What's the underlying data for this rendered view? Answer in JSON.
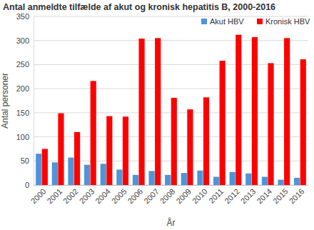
{
  "chart_data": {
    "type": "bar",
    "title": "Antal anmeldte tilfælde af akut og kronisk hepatitis B, 2000-2016",
    "x_label": "År",
    "y_label": "Antal personer",
    "categories": [
      "2000",
      "2001",
      "2002",
      "2003",
      "2004",
      "2005",
      "2006",
      "2007",
      "2008",
      "2009",
      "2010",
      "2011",
      "2012",
      "2013",
      "2014",
      "2015",
      "2016"
    ],
    "series": [
      {
        "name": "Akut HBV",
        "color": "#4f94d8",
        "values": [
          65,
          47,
          57,
          42,
          44,
          32,
          21,
          29,
          21,
          25,
          30,
          17,
          27,
          24,
          17,
          11,
          15
        ]
      },
      {
        "name": "Kronisk HBV",
        "color": "#ff0000",
        "values": [
          75,
          149,
          110,
          216,
          143,
          142,
          304,
          305,
          181,
          157,
          182,
          258,
          312,
          307,
          253,
          305,
          261
        ]
      }
    ],
    "ylim": [
      0,
      350
    ],
    "yticks": [
      0,
      50,
      100,
      150,
      200,
      250,
      300,
      350
    ],
    "grid": true,
    "legend": "top-right"
  }
}
